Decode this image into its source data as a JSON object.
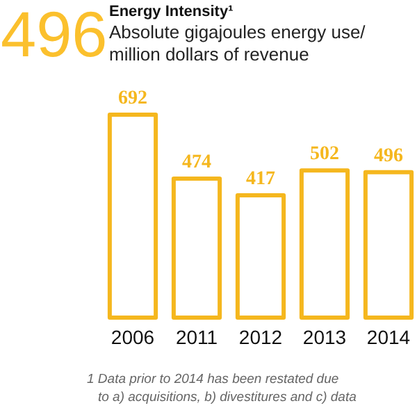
{
  "chart_data": {
    "type": "bar",
    "title": "Energy Intensity¹",
    "subtitle": "Absolute gigajoules energy use/ million dollars of revenue",
    "categories": [
      "2006",
      "2011",
      "2012",
      "2013",
      "2014"
    ],
    "values": [
      692,
      474,
      417,
      502,
      496
    ],
    "color": "#f5b71e",
    "data_labels": true,
    "annotations": [
      "496",
      "1 Data prior to 2014 has been restated due to a) acquisitions, b) divestitures and c) data"
    ]
  }
}
